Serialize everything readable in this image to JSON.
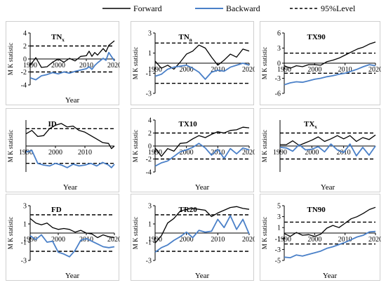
{
  "legend": {
    "forward": "Forward",
    "backward": "Backward",
    "level": "95%Level"
  },
  "colors": {
    "forward": "#000000",
    "backward": "#4a80c8",
    "level": "#000000"
  },
  "chart_data": [
    {
      "type": "line",
      "title": "TN",
      "title_subscript": "x",
      "xlabel": "Year",
      "ylabel": "M K statistic",
      "xlim": [
        1990,
        2020
      ],
      "ylim": [
        -4,
        4
      ],
      "yticks": [
        -4,
        -2,
        0,
        2,
        4
      ],
      "xticks": [
        1990,
        2000,
        2010,
        2020
      ],
      "x": [
        1990,
        1992,
        1994,
        1996,
        1998,
        2000,
        2002,
        2004,
        2006,
        2008,
        2010,
        2011,
        2012,
        2013,
        2014,
        2016,
        2017,
        2018,
        2020
      ],
      "level": [
        2,
        -2
      ],
      "series": [
        {
          "name": "Forward",
          "values": [
            -1.0,
            0.2,
            -1.3,
            -1.2,
            -0.5,
            0,
            -0.5,
            0.1,
            -0.3,
            0.4,
            0.5,
            1.2,
            0.4,
            1.0,
            0.6,
            1.6,
            1.1,
            2.1,
            2.8
          ]
        },
        {
          "name": "Backward",
          "values": [
            -2.9,
            -3.2,
            -2.6,
            -2.4,
            -2.1,
            -2.3,
            -2.0,
            -2.2,
            -1.9,
            -1.7,
            -1.5,
            -1.2,
            -1.6,
            -1.0,
            -0.6,
            0.1,
            -0.2,
            1.0,
            -0.3
          ]
        }
      ]
    },
    {
      "type": "line",
      "title": "TN",
      "title_subscript": "n",
      "xlabel": "",
      "ylabel": "M K statistic",
      "xlim": [
        1990,
        2020
      ],
      "ylim": [
        -3,
        3
      ],
      "yticks": [
        -3,
        -1,
        1,
        3
      ],
      "xticks": [
        1990,
        2000,
        2010,
        2020
      ],
      "x": [
        1990,
        1992,
        1994,
        1996,
        1998,
        2000,
        2002,
        2004,
        2006,
        2008,
        2010,
        2012,
        2014,
        2016,
        2018,
        2020
      ],
      "level": [
        2,
        -2
      ],
      "series": [
        {
          "name": "Forward",
          "values": [
            0.2,
            -0.5,
            -0.2,
            -0.6,
            0.1,
            0.9,
            1.2,
            1.8,
            1.5,
            0.6,
            -0.2,
            0.3,
            0.9,
            0.6,
            1.4,
            1.2
          ]
        },
        {
          "name": "Backward",
          "values": [
            -1.3,
            -1.1,
            -0.6,
            -0.4,
            -0.3,
            -0.2,
            -0.5,
            -0.9,
            -1.6,
            -0.9,
            -0.7,
            -0.8,
            -0.4,
            -0.2,
            0.0,
            -0.2
          ]
        }
      ]
    },
    {
      "type": "line",
      "title": "TX90",
      "xlabel": "",
      "ylabel": "M K statistic",
      "xlim": [
        1990,
        2020
      ],
      "ylim": [
        -6,
        6
      ],
      "yticks": [
        -6,
        -3,
        0,
        3,
        6
      ],
      "xticks": [
        1990,
        2000,
        2010,
        2020
      ],
      "x": [
        1990,
        1992,
        1994,
        1996,
        1998,
        2000,
        2002,
        2004,
        2006,
        2008,
        2010,
        2012,
        2014,
        2016,
        2018,
        2020
      ],
      "level": [
        2,
        -2
      ],
      "series": [
        {
          "name": "Forward",
          "values": [
            -0.5,
            -1.0,
            -0.5,
            -0.7,
            -0.3,
            -0.3,
            -0.4,
            0.3,
            0.6,
            1.0,
            1.6,
            2.2,
            2.8,
            3.2,
            3.8,
            4.2
          ]
        },
        {
          "name": "Backward",
          "values": [
            -4.3,
            -3.9,
            -3.7,
            -3.8,
            -3.5,
            -3.2,
            -3.0,
            -2.7,
            -2.5,
            -2.2,
            -2.0,
            -1.6,
            -1.2,
            -0.7,
            -0.3,
            -0.5
          ]
        }
      ]
    },
    {
      "type": "line",
      "title": "ID",
      "xlabel": "Year",
      "ylabel": "M K statistic",
      "xlim": [
        1990,
        2020
      ],
      "ylim": [
        -3,
        3
      ],
      "yticks": [],
      "xticks": [
        1990,
        2000,
        2010
      ],
      "x": [
        1990,
        1992,
        1994,
        1996,
        1998,
        2000,
        2002,
        2004,
        2006,
        2008,
        2010,
        2012,
        2014,
        2016,
        2018,
        2019,
        2020
      ],
      "level": [
        2,
        -2
      ],
      "series": [
        {
          "name": "Forward",
          "values": [
            1.4,
            1.8,
            1.1,
            1.2,
            2.0,
            2.4,
            2.6,
            2.2,
            2.3,
            1.8,
            1.6,
            1.2,
            0.8,
            0.4,
            0.3,
            -0.3,
            0.0
          ]
        },
        {
          "name": "Backward",
          "values": [
            -0.7,
            -0.5,
            -2.0,
            -2.2,
            -2.3,
            -2.0,
            -2.2,
            -2.5,
            -2.1,
            -2.3,
            -2.2,
            -2.0,
            -2.3,
            -1.9,
            -2.2,
            -2.5,
            -2.1
          ]
        }
      ]
    },
    {
      "type": "line",
      "title": "TX10",
      "xlabel": "Year",
      "ylabel": "M K statistic",
      "xlim": [
        1990,
        2020
      ],
      "ylim": [
        -4,
        4
      ],
      "yticks": [
        -4,
        -2,
        0,
        2,
        4
      ],
      "xticks": [
        1990,
        2000,
        2010,
        2020
      ],
      "x": [
        1990,
        1992,
        1994,
        1996,
        1998,
        2000,
        2002,
        2004,
        2006,
        2008,
        2010,
        2012,
        2014,
        2016,
        2018,
        2020
      ],
      "level": [
        2,
        -2
      ],
      "series": [
        {
          "name": "Forward",
          "values": [
            -0.3,
            -1.6,
            -0.4,
            -0.8,
            0.4,
            0.5,
            1.1,
            1.6,
            1.3,
            1.8,
            2.2,
            2.0,
            2.4,
            2.5,
            2.9,
            2.8
          ]
        },
        {
          "name": "Backward",
          "values": [
            -3.1,
            -2.6,
            -2.3,
            -1.6,
            -0.9,
            -0.6,
            -0.2,
            0.4,
            -0.3,
            -1.4,
            -0.5,
            -1.9,
            -0.4,
            -1.2,
            -0.3,
            -0.6
          ]
        }
      ]
    },
    {
      "type": "line",
      "title": "TX",
      "title_subscript": "x",
      "xlabel": "Year",
      "ylabel": "M K statistic",
      "xlim": [
        1990,
        2020
      ],
      "ylim": [
        -4,
        4
      ],
      "yticks": [],
      "xticks": [
        1990,
        2000,
        2010
      ],
      "x": [
        1990,
        1992,
        1994,
        1996,
        1998,
        2000,
        2002,
        2004,
        2006,
        2008,
        2010,
        2012,
        2014,
        2016,
        2018,
        2020
      ],
      "level": [
        2,
        -2
      ],
      "series": [
        {
          "name": "Forward",
          "values": [
            0.2,
            0.2,
            0.8,
            0.1,
            0.5,
            0.9,
            1.4,
            0.7,
            1.1,
            1.6,
            1.1,
            1.6,
            0.7,
            1.3,
            1.0,
            1.7
          ]
        },
        {
          "name": "Backward",
          "values": [
            -0.2,
            -0.3,
            -0.8,
            0.2,
            -0.6,
            -0.5,
            -0.1,
            -0.9,
            0.3,
            -0.6,
            -1.0,
            0.3,
            -1.5,
            -0.2,
            -1.4,
            0.0
          ]
        }
      ]
    },
    {
      "type": "line",
      "title": "FD",
      "xlabel": "Year",
      "ylabel": "M K statistic",
      "xlim": [
        1990,
        2020
      ],
      "ylim": [
        -3,
        3
      ],
      "yticks": [
        -3,
        -1,
        1,
        3
      ],
      "xticks": [
        1990,
        2000,
        2010,
        2020
      ],
      "x": [
        1990,
        1992,
        1994,
        1996,
        1998,
        2000,
        2002,
        2004,
        2006,
        2008,
        2010,
        2012,
        2014,
        2016,
        2018,
        2020
      ],
      "level": [
        2,
        -2
      ],
      "series": [
        {
          "name": "Forward",
          "values": [
            1.6,
            1.1,
            0.9,
            1.1,
            0.6,
            0.4,
            0.5,
            0.4,
            0.1,
            0.3,
            0.0,
            -0.1,
            -0.5,
            -0.2,
            -0.4,
            -0.5
          ]
        },
        {
          "name": "Backward",
          "values": [
            -0.3,
            -0.7,
            -0.2,
            -1.0,
            -0.9,
            -2.1,
            -2.3,
            -2.6,
            -1.9,
            -0.8,
            -0.6,
            -0.9,
            -1.2,
            -1.5,
            -1.6,
            -1.5
          ]
        }
      ]
    },
    {
      "type": "line",
      "title": "TR20",
      "xlabel": "Year",
      "ylabel": "M K statistic",
      "xlim": [
        1990,
        2020
      ],
      "ylim": [
        -3,
        3
      ],
      "yticks": [
        -3,
        -1,
        1,
        3
      ],
      "xticks": [
        1990,
        2000,
        2010,
        2020
      ],
      "x": [
        1990,
        1992,
        1994,
        1996,
        1998,
        2000,
        2002,
        2004,
        2006,
        2008,
        2010,
        2012,
        2014,
        2016,
        2018,
        2020
      ],
      "level": [
        2,
        -2
      ],
      "series": [
        {
          "name": "Forward",
          "values": [
            -1.1,
            -0.3,
            1.1,
            1.6,
            2.4,
            2.6,
            2.7,
            2.6,
            2.5,
            1.8,
            2.2,
            2.5,
            2.8,
            2.9,
            2.7,
            2.6
          ]
        },
        {
          "name": "Backward",
          "values": [
            -2.1,
            -1.6,
            -1.3,
            -0.8,
            -0.4,
            0.1,
            -0.5,
            0.3,
            0.1,
            0.2,
            1.5,
            0.6,
            1.9,
            0.4,
            1.5,
            -0.1
          ]
        }
      ]
    },
    {
      "type": "line",
      "title": "TN90",
      "xlabel": "Year",
      "ylabel": "M K statistic",
      "xlim": [
        1990,
        2020
      ],
      "ylim": [
        -5,
        5
      ],
      "yticks": [
        -5,
        -3,
        -1,
        1,
        3,
        5
      ],
      "xticks": [
        1990,
        2000,
        2010,
        2020
      ],
      "x": [
        1990,
        1992,
        1994,
        1996,
        1998,
        2000,
        2002,
        2004,
        2006,
        2008,
        2010,
        2012,
        2014,
        2016,
        2018,
        2020
      ],
      "level": [
        2,
        -2
      ],
      "series": [
        {
          "name": "Forward",
          "values": [
            -0.1,
            -0.6,
            0.1,
            -0.4,
            -0.3,
            -0.6,
            -0.2,
            0.9,
            1.4,
            1.0,
            1.8,
            2.6,
            3.0,
            3.6,
            4.3,
            4.7
          ]
        },
        {
          "name": "Backward",
          "values": [
            -4.4,
            -4.5,
            -4.0,
            -4.2,
            -3.9,
            -3.6,
            -3.3,
            -2.8,
            -2.5,
            -2.1,
            -1.7,
            -1.2,
            -0.7,
            -0.4,
            0.2,
            0.3
          ]
        }
      ]
    }
  ]
}
